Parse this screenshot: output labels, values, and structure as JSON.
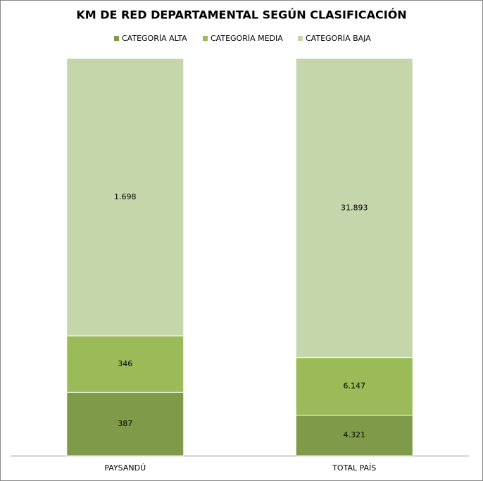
{
  "chart_data": {
    "type": "bar",
    "stacking": "percent",
    "title": "KM DE RED DEPARTAMENTAL SEGÚN CLASIFICACIÓN",
    "categories": [
      "PAYSANDÚ",
      "TOTAL PAÍS"
    ],
    "series": [
      {
        "name": "CATEGORÍA ALTA",
        "color": "#7f9a48",
        "values": [
          387,
          4321
        ],
        "value_labels": [
          "387",
          "4.321"
        ]
      },
      {
        "name": "CATEGORÍA MEDIA",
        "color": "#9bbb59",
        "values": [
          346,
          6147
        ],
        "value_labels": [
          "346",
          "6.147"
        ]
      },
      {
        "name": "CATEGORÍA BAJA",
        "color": "#c4d6aa",
        "values": [
          1698,
          31893
        ],
        "value_labels": [
          "1.698",
          "31.893"
        ]
      }
    ],
    "legend": "top"
  }
}
